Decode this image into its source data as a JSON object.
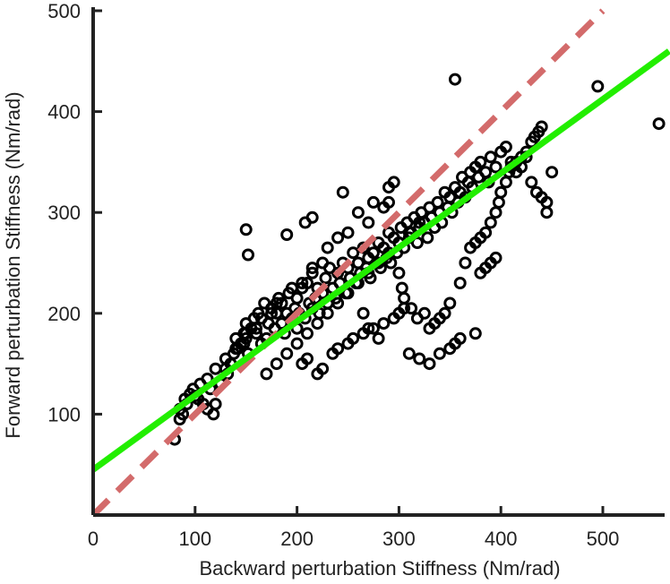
{
  "chart_data": {
    "type": "scatter",
    "title": "",
    "xlabel": "Backward perturbation Stiffness (Nm/rad)",
    "ylabel": "Forward perturbation Stiffness (Nm/rad)",
    "xlim": [
      0,
      560
    ],
    "ylim": [
      0,
      500
    ],
    "xticks": [
      0,
      100,
      200,
      300,
      400,
      500
    ],
    "yticks": [
      100,
      200,
      300,
      400,
      500
    ],
    "grid": false,
    "legend": "none",
    "colors": {
      "points": "#000000",
      "fit_line": "#22ee00",
      "identity_line": "#d36b6b",
      "axes": "#222222"
    },
    "series": [
      {
        "kind": "points",
        "x": [
          80,
          85,
          88,
          92,
          95,
          100,
          103,
          108,
          112,
          115,
          118,
          120,
          125,
          130,
          132,
          135,
          138,
          140,
          142,
          145,
          148,
          150,
          150,
          152,
          155,
          158,
          160,
          162,
          165,
          168,
          170,
          172,
          175,
          178,
          180,
          182,
          185,
          185,
          188,
          190,
          192,
          195,
          198,
          200,
          200,
          202,
          205,
          208,
          210,
          212,
          215,
          215,
          218,
          220,
          222,
          225,
          228,
          230,
          232,
          235,
          238,
          240,
          242,
          245,
          248,
          250,
          252,
          255,
          258,
          260,
          262,
          265,
          268,
          270,
          272,
          275,
          278,
          280,
          282,
          285,
          288,
          290,
          292,
          295,
          298,
          300,
          302,
          305,
          308,
          310,
          312,
          315,
          318,
          320,
          322,
          325,
          328,
          330,
          332,
          335,
          338,
          340,
          342,
          345,
          348,
          350,
          352,
          355,
          358,
          360,
          362,
          365,
          368,
          370,
          372,
          375,
          378,
          380,
          385,
          388,
          390,
          395,
          400,
          405,
          410,
          415,
          420,
          425,
          430,
          435,
          440,
          445,
          450,
          495,
          555,
          355,
          290,
          285,
          270,
          250,
          240,
          230,
          225,
          215,
          205,
          195,
          180,
          175,
          165,
          160,
          150,
          148,
          140,
          130,
          120,
          112,
          105,
          98,
          90,
          85,
          150,
          152,
          190,
          208,
          215,
          245,
          275,
          290,
          295,
          300,
          303,
          305,
          312,
          318,
          325,
          330,
          335,
          340,
          345,
          350,
          360,
          365,
          370,
          375,
          380,
          385,
          390,
          395,
          398,
          400,
          405,
          408,
          410,
          415,
          420,
          425,
          430,
          433,
          437,
          440,
          445,
          260,
          265,
          270,
          280,
          310,
          320,
          330,
          340,
          350,
          355,
          360,
          375,
          380,
          385,
          390,
          395,
          205,
          210,
          220,
          225,
          235,
          240,
          250,
          255,
          265,
          275,
          285,
          295,
          300,
          305,
          170,
          180,
          190,
          200,
          210,
          220,
          230,
          240,
          250,
          260,
          270,
          280,
          290,
          300,
          310,
          320
        ],
        "y": [
          75,
          95,
          100,
          110,
          120,
          118,
          115,
          110,
          105,
          125,
          100,
          110,
          130,
          145,
          140,
          150,
          160,
          175,
          165,
          170,
          180,
          175,
          190,
          160,
          185,
          195,
          180,
          200,
          170,
          210,
          175,
          190,
          205,
          185,
          200,
          215,
          190,
          210,
          180,
          200,
          220,
          195,
          205,
          185,
          215,
          200,
          225,
          195,
          230,
          210,
          205,
          240,
          215,
          225,
          200,
          220,
          235,
          210,
          245,
          225,
          215,
          240,
          230,
          250,
          220,
          245,
          235,
          260,
          230,
          250,
          240,
          265,
          245,
          255,
          235,
          260,
          250,
          270,
          245,
          265,
          255,
          280,
          250,
          275,
          260,
          270,
          285,
          265,
          290,
          275,
          280,
          295,
          270,
          285,
          300,
          290,
          275,
          305,
          295,
          285,
          310,
          300,
          290,
          320,
          305,
          315,
          300,
          325,
          310,
          320,
          335,
          315,
          330,
          340,
          325,
          345,
          335,
          350,
          340,
          330,
          355,
          345,
          360,
          365,
          350,
          340,
          345,
          355,
          330,
          320,
          315,
          310,
          340,
          425,
          388,
          432,
          310,
          305,
          290,
          280,
          275,
          265,
          250,
          245,
          230,
          225,
          210,
          200,
          195,
          185,
          180,
          170,
          165,
          155,
          145,
          135,
          130,
          125,
          115,
          105,
          283,
          258,
          278,
          290,
          295,
          320,
          310,
          325,
          330,
          240,
          225,
          215,
          205,
          195,
          200,
          185,
          190,
          195,
          200,
          210,
          230,
          250,
          265,
          270,
          275,
          280,
          290,
          300,
          310,
          320,
          330,
          340,
          345,
          350,
          355,
          360,
          370,
          375,
          380,
          385,
          300,
          300,
          200,
          185,
          175,
          160,
          155,
          150,
          160,
          165,
          170,
          175,
          180,
          240,
          245,
          250,
          255,
          150,
          155,
          140,
          145,
          160,
          165,
          170,
          175,
          180,
          185,
          190,
          195,
          200,
          205,
          140,
          150,
          160,
          170,
          180,
          190,
          200,
          210,
          220,
          230,
          240,
          250,
          260,
          270,
          280,
          290
        ]
      },
      {
        "kind": "fit-line",
        "x": [
          0,
          565
        ],
        "y": [
          45,
          460
        ]
      },
      {
        "kind": "identity-line",
        "x": [
          0,
          500
        ],
        "y": [
          0,
          500
        ]
      }
    ]
  }
}
